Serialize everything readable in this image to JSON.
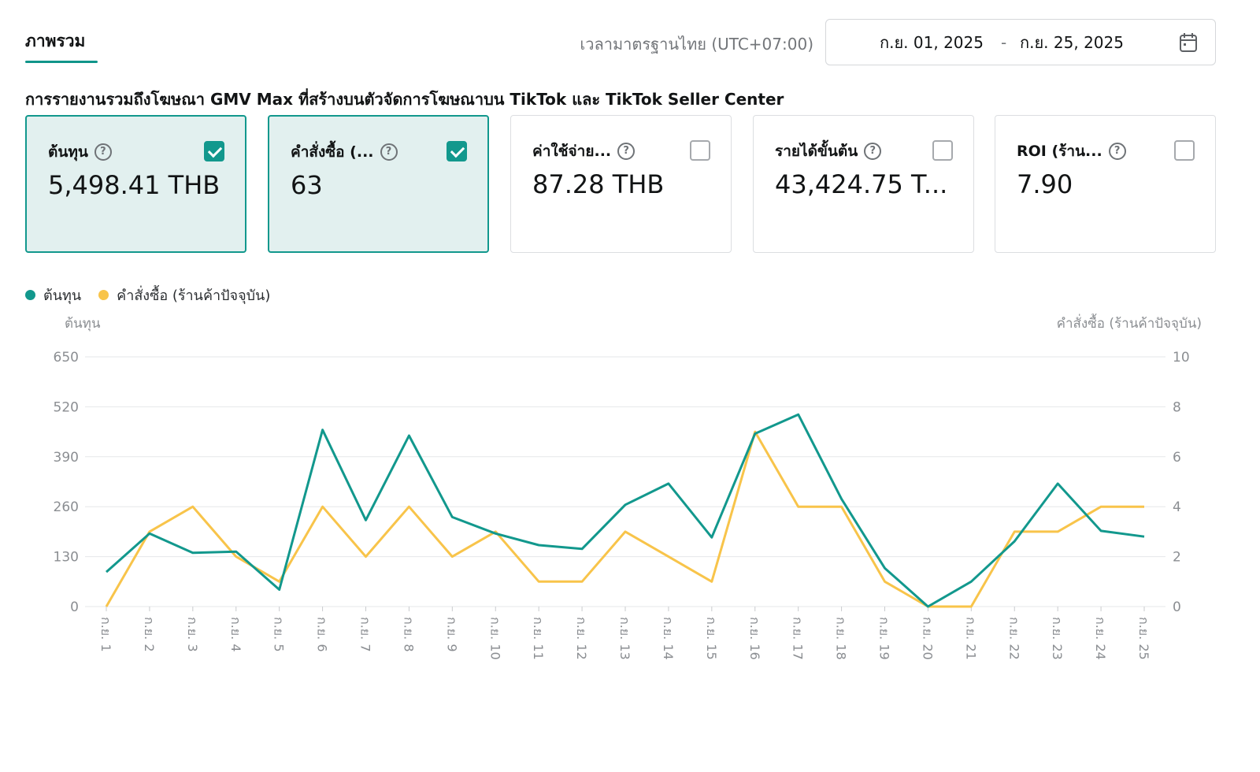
{
  "tab": {
    "label": "ภาพรวม"
  },
  "timezone": "เวลามาตรฐานไทย (UTC+07:00)",
  "date_range": {
    "start": "ก.ย. 01, 2025",
    "separator": "-",
    "end": "ก.ย. 25, 2025",
    "icon": "calendar-icon"
  },
  "description": "การรายงานรวมถึงโฆษณา GMV Max ที่สร้างบนตัวจัดการโฆษณาบน TikTok และ TikTok Seller Center",
  "metrics": [
    {
      "label": "ต้นทุน",
      "value": "5,498.41 THB",
      "checked": true
    },
    {
      "label": "คำสั่งซื้อ (...",
      "value": "63",
      "checked": true
    },
    {
      "label": "ค่าใช้จ่าย...",
      "value": "87.28 THB",
      "checked": false
    },
    {
      "label": "รายได้ขั้นต้น",
      "value": "43,424.75 T...",
      "checked": false
    },
    {
      "label": "ROI (ร้าน...",
      "value": "7.90",
      "checked": false
    }
  ],
  "colors": {
    "accent": "#12988d",
    "orders": "#f8c44a",
    "grid": "#e6e7e9",
    "tick": "#8b8e92"
  },
  "chart_data": {
    "type": "line",
    "legend_position": "top-left",
    "grid": true,
    "y_left_label": "ต้นทุน",
    "y_right_label": "คำสั่งซื้อ (ร้านค้าปัจจุบัน)",
    "y_left_ticks": [
      "650",
      "520",
      "390",
      "260",
      "130",
      "0"
    ],
    "y_right_ticks": [
      "10",
      "8",
      "6",
      "4",
      "2",
      "0"
    ],
    "ylim_left": [
      0,
      650
    ],
    "ylim_right": [
      0,
      10
    ],
    "categories": [
      "ก.ย. 1",
      "ก.ย. 2",
      "ก.ย. 3",
      "ก.ย. 4",
      "ก.ย. 5",
      "ก.ย. 6",
      "ก.ย. 7",
      "ก.ย. 8",
      "ก.ย. 9",
      "ก.ย. 10",
      "ก.ย. 11",
      "ก.ย. 12",
      "ก.ย. 13",
      "ก.ย. 14",
      "ก.ย. 15",
      "ก.ย. 16",
      "ก.ย. 17",
      "ก.ย. 18",
      "ก.ย. 19",
      "ก.ย. 20",
      "ก.ย. 21",
      "ก.ย. 22",
      "ก.ย. 23",
      "ก.ย. 24",
      "ก.ย. 25"
    ],
    "series": [
      {
        "name": "ต้นทุน",
        "axis": "left",
        "color": "#12988d",
        "values": [
          90,
          190,
          140,
          143,
          44,
          460,
          225,
          445,
          233,
          190,
          160,
          150,
          265,
          320,
          180,
          450,
          500,
          280,
          100,
          0,
          65,
          170,
          320,
          197,
          182
        ]
      },
      {
        "name": "คำสั่งซื้อ (ร้านค้าปัจจุบัน)",
        "axis": "right",
        "color": "#f8c44a",
        "values": [
          0,
          3,
          4,
          2,
          1,
          4,
          2,
          4,
          2,
          3,
          1,
          1,
          3,
          2,
          1,
          7,
          4,
          4,
          1,
          0,
          0,
          3,
          3,
          4,
          4
        ]
      }
    ]
  }
}
